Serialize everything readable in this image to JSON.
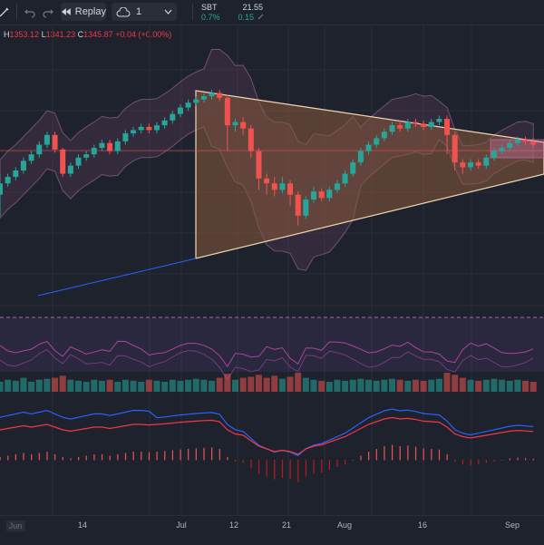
{
  "toolbar": {
    "undo_icon": "undo-icon",
    "redo_icon": "redo-icon",
    "replay_label": "Replay",
    "replay_icon": "rewind-icon",
    "cloud_icon": "cloud-icon",
    "layout_value": "1",
    "chevron_icon": "chevron-down-icon"
  },
  "ticker": {
    "symbol": "SBT",
    "price": "21.55",
    "change_pct": "0.7%",
    "change": "0.15",
    "edit_icon": "pencil-icon",
    "change_color": "#22ab94"
  },
  "ohlc": {
    "h_label": "H",
    "h_value": "1353.12",
    "l_label": "L",
    "l_value": "1341.23",
    "c_label": "C",
    "c_value": "1345.87",
    "change": "+0.04 (+0.00%)"
  },
  "colors": {
    "up": "#26a69a",
    "down": "#ef5350",
    "band_fill": "#5d3d5a",
    "triangle_fill": "#8a5a3c",
    "trend_line": "#2962ff",
    "macd_line": "#2962ff",
    "signal_line": "#f23645"
  },
  "xaxis": {
    "labels": [
      "Jun",
      "14",
      "Jul",
      "12",
      "21",
      "Aug",
      "16",
      "Sep"
    ]
  },
  "chart_data": {
    "type": "candlestick",
    "candles": [
      [
        0.35,
        0.42,
        0.22,
        0.48
      ],
      [
        0.42,
        0.46,
        0.4,
        0.48
      ],
      [
        0.46,
        0.5,
        0.44,
        0.52
      ],
      [
        0.5,
        0.56,
        0.48,
        0.58
      ],
      [
        0.56,
        0.6,
        0.54,
        0.62
      ],
      [
        0.6,
        0.66,
        0.58,
        0.68
      ],
      [
        0.66,
        0.72,
        0.64,
        0.74
      ],
      [
        0.72,
        0.63,
        0.61,
        0.74
      ],
      [
        0.63,
        0.48,
        0.46,
        0.64
      ],
      [
        0.48,
        0.53,
        0.46,
        0.55
      ],
      [
        0.53,
        0.58,
        0.51,
        0.6
      ],
      [
        0.58,
        0.6,
        0.56,
        0.62
      ],
      [
        0.6,
        0.64,
        0.58,
        0.66
      ],
      [
        0.64,
        0.67,
        0.62,
        0.69
      ],
      [
        0.67,
        0.62,
        0.6,
        0.69
      ],
      [
        0.62,
        0.68,
        0.6,
        0.7
      ],
      [
        0.68,
        0.73,
        0.66,
        0.75
      ],
      [
        0.73,
        0.75,
        0.71,
        0.77
      ],
      [
        0.75,
        0.77,
        0.73,
        0.79
      ],
      [
        0.77,
        0.75,
        0.73,
        0.79
      ],
      [
        0.75,
        0.78,
        0.73,
        0.8
      ],
      [
        0.78,
        0.81,
        0.76,
        0.83
      ],
      [
        0.81,
        0.85,
        0.79,
        0.87
      ],
      [
        0.85,
        0.89,
        0.83,
        0.91
      ],
      [
        0.89,
        0.92,
        0.87,
        0.94
      ],
      [
        0.92,
        0.94,
        0.9,
        0.96
      ],
      [
        0.94,
        0.96,
        0.92,
        0.98
      ],
      [
        0.96,
        0.98,
        0.94,
        1.0
      ],
      [
        0.98,
        0.95,
        0.93,
        1.0
      ],
      [
        0.95,
        0.78,
        0.62,
        0.97
      ],
      [
        0.78,
        0.8,
        0.74,
        0.82
      ],
      [
        0.8,
        0.76,
        0.72,
        0.83
      ],
      [
        0.76,
        0.62,
        0.58,
        0.78
      ],
      [
        0.62,
        0.45,
        0.38,
        0.64
      ],
      [
        0.45,
        0.42,
        0.35,
        0.48
      ],
      [
        0.42,
        0.38,
        0.34,
        0.46
      ],
      [
        0.38,
        0.42,
        0.36,
        0.46
      ],
      [
        0.42,
        0.35,
        0.28,
        0.44
      ],
      [
        0.35,
        0.22,
        0.16,
        0.37
      ],
      [
        0.22,
        0.32,
        0.2,
        0.34
      ],
      [
        0.32,
        0.37,
        0.3,
        0.4
      ],
      [
        0.37,
        0.33,
        0.31,
        0.39
      ],
      [
        0.33,
        0.38,
        0.31,
        0.4
      ],
      [
        0.38,
        0.42,
        0.36,
        0.44
      ],
      [
        0.42,
        0.48,
        0.4,
        0.5
      ],
      [
        0.48,
        0.55,
        0.46,
        0.57
      ],
      [
        0.55,
        0.62,
        0.53,
        0.64
      ],
      [
        0.62,
        0.66,
        0.6,
        0.68
      ],
      [
        0.66,
        0.7,
        0.64,
        0.72
      ],
      [
        0.7,
        0.74,
        0.68,
        0.76
      ],
      [
        0.74,
        0.78,
        0.72,
        0.8
      ],
      [
        0.78,
        0.76,
        0.74,
        0.81
      ],
      [
        0.76,
        0.8,
        0.74,
        0.82
      ],
      [
        0.8,
        0.79,
        0.77,
        0.82
      ],
      [
        0.79,
        0.77,
        0.75,
        0.81
      ],
      [
        0.77,
        0.8,
        0.75,
        0.82
      ],
      [
        0.8,
        0.82,
        0.78,
        0.84
      ],
      [
        0.82,
        0.72,
        0.6,
        0.84
      ],
      [
        0.72,
        0.55,
        0.5,
        0.74
      ],
      [
        0.55,
        0.52,
        0.48,
        0.57
      ],
      [
        0.52,
        0.55,
        0.5,
        0.57
      ],
      [
        0.55,
        0.53,
        0.51,
        0.57
      ],
      [
        0.53,
        0.58,
        0.51,
        0.6
      ],
      [
        0.58,
        0.62,
        0.56,
        0.64
      ],
      [
        0.62,
        0.64,
        0.6,
        0.66
      ],
      [
        0.64,
        0.67,
        0.62,
        0.69
      ],
      [
        0.67,
        0.69,
        0.65,
        0.71
      ],
      [
        0.69,
        0.68,
        0.66,
        0.71
      ],
      [
        0.68,
        0.66,
        0.64,
        0.7
      ]
    ],
    "volumes": [
      0.5,
      0.6,
      0.55,
      0.7,
      0.5,
      0.6,
      0.65,
      0.7,
      0.8,
      0.6,
      0.55,
      0.5,
      0.6,
      0.55,
      0.6,
      0.5,
      0.6,
      0.55,
      0.5,
      0.6,
      0.55,
      0.5,
      0.6,
      0.55,
      0.6,
      0.65,
      0.6,
      0.55,
      0.7,
      0.9,
      0.6,
      0.7,
      0.75,
      0.85,
      0.7,
      0.8,
      0.65,
      0.75,
      0.95,
      0.7,
      0.6,
      0.55,
      0.5,
      0.6,
      0.55,
      0.6,
      0.65,
      0.6,
      0.55,
      0.6,
      0.65,
      0.6,
      0.55,
      0.6,
      0.55,
      0.6,
      0.65,
      0.95,
      0.85,
      0.7,
      0.6,
      0.55,
      0.6,
      0.65,
      0.6,
      0.55,
      0.6,
      0.55,
      0.5
    ],
    "macd_hist": [
      0.1,
      0.15,
      0.2,
      0.25,
      0.2,
      0.25,
      0.3,
      0.2,
      0.1,
      0.05,
      0.1,
      0.15,
      0.2,
      0.2,
      0.15,
      0.2,
      0.25,
      0.3,
      0.3,
      0.28,
      0.3,
      0.32,
      0.35,
      0.38,
      0.4,
      0.42,
      0.44,
      0.45,
      0.4,
      0.1,
      -0.05,
      -0.1,
      -0.3,
      -0.5,
      -0.6,
      -0.7,
      -0.65,
      -0.7,
      -0.8,
      -0.6,
      -0.5,
      -0.45,
      -0.35,
      -0.25,
      -0.15,
      0.0,
      0.15,
      0.3,
      0.4,
      0.5,
      0.55,
      0.5,
      0.52,
      0.48,
      0.42,
      0.4,
      0.38,
      0.2,
      -0.05,
      -0.15,
      -0.2,
      -0.15,
      -0.1,
      -0.05,
      0.0,
      0.05,
      0.08,
      0.06,
      0.04
    ]
  }
}
